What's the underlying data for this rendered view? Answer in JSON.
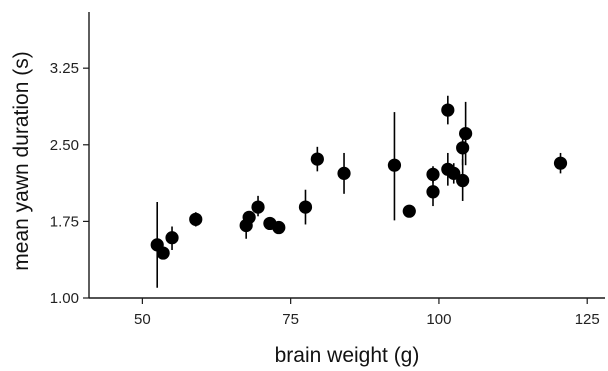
{
  "chart_data": {
    "type": "scatter",
    "title": "",
    "xlabel": "brain weight (g)",
    "ylabel": "mean yawn duration (s)",
    "xlim": [
      41,
      128
    ],
    "ylim": [
      1.0,
      3.8
    ],
    "xticks": [
      "50",
      "75",
      "100",
      "125"
    ],
    "yticks": [
      "1.00",
      "1.75",
      "2.50",
      "3.25"
    ],
    "grid": false,
    "legend": "none",
    "marker_color": "#000000",
    "points": [
      {
        "x": 52.5,
        "y": 1.52,
        "lo": 1.1,
        "hi": 1.94
      },
      {
        "x": 53.5,
        "y": 1.44,
        "lo": 1.4,
        "hi": 1.48
      },
      {
        "x": 55.0,
        "y": 1.59,
        "lo": 1.47,
        "hi": 1.7
      },
      {
        "x": 59.0,
        "y": 1.77,
        "lo": 1.7,
        "hi": 1.84
      },
      {
        "x": 67.5,
        "y": 1.71,
        "lo": 1.58,
        "hi": 1.83
      },
      {
        "x": 68.0,
        "y": 1.79,
        "lo": 1.74,
        "hi": 1.84
      },
      {
        "x": 69.5,
        "y": 1.89,
        "lo": 1.8,
        "hi": 2.0
      },
      {
        "x": 71.5,
        "y": 1.73,
        "lo": 1.68,
        "hi": 1.78
      },
      {
        "x": 73.0,
        "y": 1.69,
        "lo": 1.66,
        "hi": 1.72
      },
      {
        "x": 77.5,
        "y": 1.89,
        "lo": 1.72,
        "hi": 2.06
      },
      {
        "x": 79.5,
        "y": 2.36,
        "lo": 2.24,
        "hi": 2.48
      },
      {
        "x": 84.0,
        "y": 2.22,
        "lo": 2.02,
        "hi": 2.42
      },
      {
        "x": 92.5,
        "y": 2.3,
        "lo": 1.76,
        "hi": 2.82
      },
      {
        "x": 95.0,
        "y": 1.85,
        "lo": 1.79,
        "hi": 1.91
      },
      {
        "x": 99.0,
        "y": 2.21,
        "lo": 2.13,
        "hi": 2.29
      },
      {
        "x": 99.0,
        "y": 2.04,
        "lo": 1.9,
        "hi": 2.18
      },
      {
        "x": 101.5,
        "y": 2.84,
        "lo": 2.7,
        "hi": 2.98
      },
      {
        "x": 101.5,
        "y": 2.26,
        "lo": 2.1,
        "hi": 2.42
      },
      {
        "x": 102.5,
        "y": 2.22,
        "lo": 2.12,
        "hi": 2.32
      },
      {
        "x": 104.0,
        "y": 2.15,
        "lo": 1.95,
        "hi": 2.36
      },
      {
        "x": 104.0,
        "y": 2.47,
        "lo": 2.3,
        "hi": 2.64
      },
      {
        "x": 104.5,
        "y": 2.61,
        "lo": 2.3,
        "hi": 2.92
      },
      {
        "x": 120.5,
        "y": 2.32,
        "lo": 2.22,
        "hi": 2.42
      }
    ]
  }
}
